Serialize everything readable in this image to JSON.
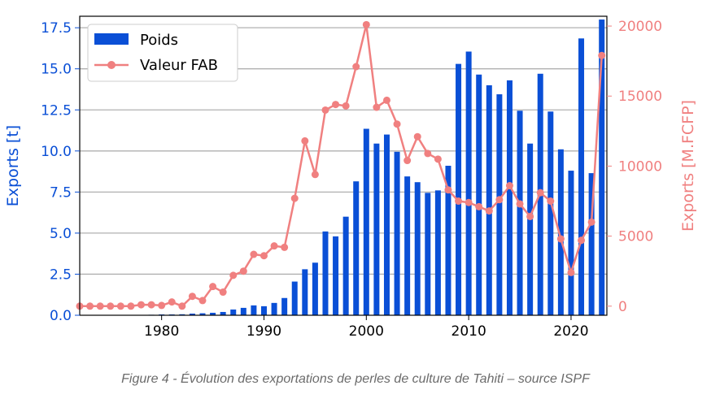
{
  "caption": "Figure 4 - Évolution des exportations de perles de culture de Tahiti – source ISPF",
  "colors": {
    "bars": "#0a4fd6",
    "line": "#f08080",
    "left_axis": "#0a4fd6",
    "right_axis": "#f08080",
    "grid": "#b0b0b0"
  },
  "chart_data": {
    "type": "bar+line",
    "title": "",
    "xlabel": "",
    "x_range": [
      1972,
      2023.5
    ],
    "x_ticks": [
      1980,
      1990,
      2000,
      2010,
      2020
    ],
    "grid": "horizontal",
    "legend": {
      "placement": "top-left",
      "entries": [
        "Poids",
        "Valeur FAB"
      ]
    },
    "left_axis": {
      "label": "Exports [t]",
      "ylim": [
        0,
        18.2
      ],
      "ticks": [
        0.0,
        2.5,
        5.0,
        7.5,
        10.0,
        12.5,
        15.0,
        17.5
      ],
      "tick_labels": [
        "0.0",
        "2.5",
        "5.0",
        "7.5",
        "10.0",
        "12.5",
        "15.0",
        "17.5"
      ]
    },
    "right_axis": {
      "label": "Exports [M.FCFP]",
      "ylim": [
        -650,
        20700
      ],
      "ticks": [
        0,
        5000,
        10000,
        15000,
        20000
      ],
      "tick_labels": [
        "0",
        "5000",
        "10000",
        "15000",
        "20000"
      ]
    },
    "series": [
      {
        "name": "Poids",
        "type": "bar",
        "axis": "left",
        "x": [
          1973,
          1974,
          1975,
          1976,
          1977,
          1978,
          1979,
          1980,
          1981,
          1982,
          1983,
          1984,
          1985,
          1986,
          1987,
          1988,
          1989,
          1990,
          1991,
          1992,
          1993,
          1994,
          1995,
          1996,
          1997,
          1998,
          1999,
          2000,
          2001,
          2002,
          2003,
          2004,
          2005,
          2006,
          2007,
          2008,
          2009,
          2010,
          2011,
          2012,
          2013,
          2014,
          2015,
          2016,
          2017,
          2018,
          2019,
          2020,
          2021,
          2022,
          2023
        ],
        "values": [
          0.01,
          0.01,
          0.01,
          0.01,
          0.01,
          0.02,
          0.03,
          0.05,
          0.05,
          0.06,
          0.1,
          0.12,
          0.15,
          0.2,
          0.35,
          0.45,
          0.6,
          0.55,
          0.75,
          1.05,
          2.05,
          2.8,
          3.2,
          5.1,
          4.8,
          6.0,
          8.15,
          11.35,
          10.45,
          11.0,
          9.95,
          8.45,
          8.1,
          7.45,
          7.6,
          9.1,
          15.3,
          16.05,
          14.65,
          14.0,
          13.45,
          14.3,
          12.45,
          10.45,
          14.7,
          12.4,
          10.1,
          8.8,
          16.85,
          8.65,
          18.0
        ]
      },
      {
        "name": "Valeur FAB",
        "type": "line",
        "axis": "right",
        "x": [
          1972,
          1973,
          1974,
          1975,
          1976,
          1977,
          1978,
          1979,
          1980,
          1981,
          1982,
          1983,
          1984,
          1985,
          1986,
          1987,
          1988,
          1989,
          1990,
          1991,
          1992,
          1993,
          1994,
          1995,
          1996,
          1997,
          1998,
          1999,
          2000,
          2001,
          2002,
          2003,
          2004,
          2005,
          2006,
          2007,
          2008,
          2009,
          2010,
          2011,
          2012,
          2013,
          2014,
          2015,
          2016,
          2017,
          2018,
          2019,
          2020,
          2021,
          2022,
          2023
        ],
        "values": [
          0,
          0,
          0,
          0,
          0,
          0,
          100,
          100,
          50,
          300,
          0,
          700,
          400,
          1400,
          1000,
          2200,
          2500,
          3700,
          3600,
          4300,
          4200,
          7700,
          11800,
          9400,
          14000,
          14400,
          14300,
          17100,
          20100,
          14200,
          14700,
          13000,
          10400,
          12100,
          10900,
          10500,
          8300,
          7500,
          7400,
          7100,
          6800,
          7600,
          8600,
          7300,
          6400,
          8100,
          7500,
          4800,
          2400,
          4700,
          6000,
          17900
        ]
      }
    ]
  }
}
